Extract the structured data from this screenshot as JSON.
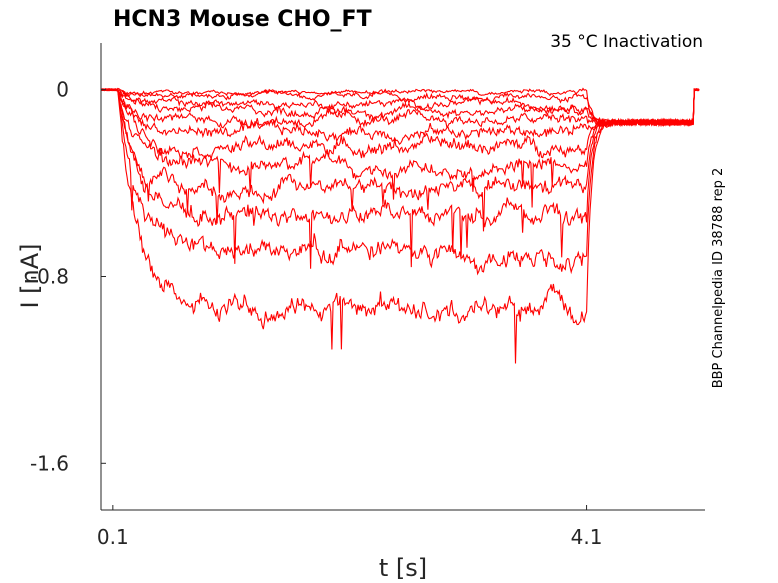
{
  "chart_data": {
    "type": "line",
    "title": "HCN3  Mouse  CHO_FT",
    "subtitle": "35 °C  Inactivation",
    "side_label": "BBP Channelpedia ID 38788 rep 2",
    "xlabel": "t [s]",
    "ylabel": "I [nA]",
    "xlim": [
      0.0,
      5.1
    ],
    "ylim": [
      -1.8,
      0.2
    ],
    "xticks": [
      {
        "value": 0.1,
        "label": "0.1"
      },
      {
        "value": 4.1,
        "label": "4.1"
      }
    ],
    "yticks": [
      {
        "value": 0,
        "label": "0"
      },
      {
        "value": -0.8,
        "label": "-0.8"
      },
      {
        "value": -1.6,
        "label": "-1.6"
      }
    ],
    "grid": false,
    "series_color": "#ff0000",
    "protocol": {
      "pre_start": 0.0,
      "step_start": 0.14,
      "step_end": 4.1,
      "tail_end": 5.0,
      "end": 5.05,
      "tail_level": -0.14
    },
    "series": [
      {
        "steady": -0.01
      },
      {
        "steady": -0.03
      },
      {
        "steady": -0.06
      },
      {
        "steady": -0.09
      },
      {
        "steady": -0.13
      },
      {
        "steady": -0.18
      },
      {
        "steady": -0.24
      },
      {
        "steady": -0.32
      },
      {
        "steady": -0.42
      },
      {
        "steady": -0.54
      },
      {
        "steady": -0.7
      },
      {
        "steady": -0.93
      }
    ]
  }
}
